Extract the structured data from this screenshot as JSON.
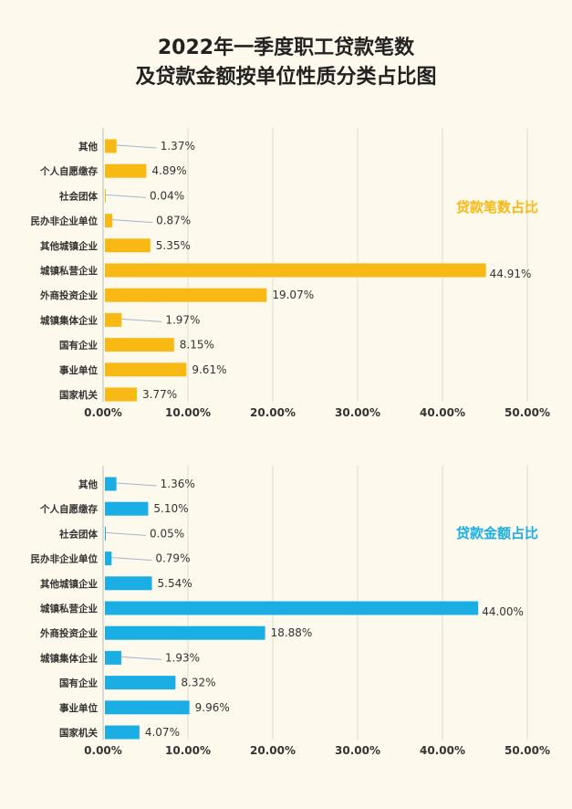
{
  "title_line1": "2022年一季度职工贷款笔数",
  "title_line2": "及贷款金额按单位性质分类占比图",
  "chart_data": [
    {
      "type": "bar",
      "orientation": "horizontal",
      "legend": "贷款笔数占比",
      "color": "#f8b914",
      "categories": [
        "其他",
        "个人自愿缴存",
        "社会团体",
        "民办非企业单位",
        "其他城镇企业",
        "城镇私营企业",
        "外商投资企业",
        "城镇集体企业",
        "国有企业",
        "事业单位",
        "国家机关"
      ],
      "values": [
        1.37,
        4.89,
        0.04,
        0.87,
        5.35,
        44.91,
        19.07,
        1.97,
        8.15,
        9.61,
        3.77
      ],
      "value_labels": [
        "1.37%",
        "4.89%",
        "0.04%",
        "0.87%",
        "5.35%",
        "44.91%",
        "19.07%",
        "1.97%",
        "8.15%",
        "9.61%",
        "3.77%"
      ],
      "xlim": [
        0,
        50
      ],
      "ticks": [
        "0.00%",
        "10.00%",
        "20.00%",
        "30.00%",
        "40.00%",
        "50.00%"
      ],
      "grid": true,
      "legend_position": "right"
    },
    {
      "type": "bar",
      "orientation": "horizontal",
      "legend": "贷款金额占比",
      "color": "#1aaee5",
      "categories": [
        "其他",
        "个人自愿缴存",
        "社会团体",
        "民办非企业单位",
        "其他城镇企业",
        "城镇私营企业",
        "外商投资企业",
        "城镇集体企业",
        "国有企业",
        "事业单位",
        "国家机关"
      ],
      "values": [
        1.36,
        5.1,
        0.05,
        0.79,
        5.54,
        44.0,
        18.88,
        1.93,
        8.32,
        9.96,
        4.07
      ],
      "value_labels": [
        "1.36%",
        "5.10%",
        "0.05%",
        "0.79%",
        "5.54%",
        "44.00%",
        "18.88%",
        "1.93%",
        "8.32%",
        "9.96%",
        "4.07%"
      ],
      "xlim": [
        0,
        50
      ],
      "ticks": [
        "0.00%",
        "10.00%",
        "20.00%",
        "30.00%",
        "40.00%",
        "50.00%"
      ],
      "grid": true,
      "legend_position": "right"
    }
  ]
}
